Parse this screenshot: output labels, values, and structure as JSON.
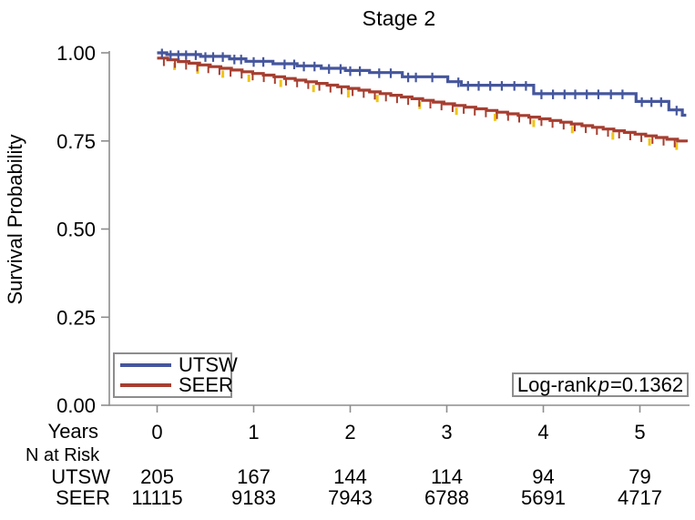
{
  "title": "Stage 2",
  "y_axis": {
    "label": "Survival Probability",
    "tick_labels": [
      "1.00",
      "0.75",
      "0.50",
      "0.25",
      "0.00"
    ],
    "tick_values": [
      1.0,
      0.75,
      0.5,
      0.25,
      0.0
    ]
  },
  "x_axis": {
    "label": "Years",
    "tick_labels": [
      "0",
      "1",
      "2",
      "3",
      "4",
      "5"
    ],
    "tick_values": [
      0,
      1,
      2,
      3,
      4,
      5
    ]
  },
  "legend": {
    "items": [
      {
        "label": "UTSW",
        "color": "#45569c"
      },
      {
        "label": "SEER",
        "color": "#a63e30"
      }
    ]
  },
  "annotation": {
    "prefix": "Log-rank",
    "p_symbol": "p",
    "value": "=0.1362"
  },
  "risk_table": {
    "section_label": "N at Risk",
    "rows": [
      {
        "label": "UTSW",
        "values": [
          "205",
          "167",
          "144",
          "114",
          "94",
          "79"
        ]
      },
      {
        "label": "SEER",
        "values": [
          "11115",
          "9183",
          "7943",
          "6788",
          "5691",
          "4717"
        ]
      }
    ]
  },
  "axis_color": "#8d8d8d",
  "chart_data": {
    "type": "line",
    "title": "Stage 2",
    "xlabel": "Years",
    "ylabel": "Survival Probability",
    "xlim": [
      0,
      5.6
    ],
    "ylim": [
      0,
      1
    ],
    "x_ticks": [
      0,
      1,
      2,
      3,
      4,
      5
    ],
    "y_ticks": [
      0,
      0.25,
      0.5,
      0.75,
      1.0
    ],
    "grid": false,
    "legend_position": "bottom-left-inside",
    "annotation_text": "Log-rank p=0.1362",
    "logrank_p": 0.1362,
    "series": [
      {
        "name": "UTSW",
        "color": "#45569c",
        "mode": "steps",
        "points": [
          [
            0,
            1.0
          ],
          [
            0.1,
            0.995
          ],
          [
            0.45,
            0.99
          ],
          [
            0.75,
            0.983
          ],
          [
            0.92,
            0.976
          ],
          [
            1.2,
            0.969
          ],
          [
            1.45,
            0.963
          ],
          [
            1.7,
            0.956
          ],
          [
            1.95,
            0.95
          ],
          [
            2.2,
            0.944
          ],
          [
            2.54,
            0.932
          ],
          [
            3.01,
            0.918
          ],
          [
            3.15,
            0.908
          ],
          [
            3.9,
            0.884
          ],
          [
            4.96,
            0.862
          ],
          [
            5.3,
            0.838
          ],
          [
            5.44,
            0.823
          ]
        ],
        "end_x": 5.48,
        "censor_times": [
          0.05,
          0.14,
          0.22,
          0.3,
          0.4,
          0.5,
          0.58,
          0.68,
          0.8,
          0.87,
          1.0,
          1.1,
          1.32,
          1.42,
          1.52,
          1.63,
          1.78,
          1.9,
          2.0,
          2.1,
          2.3,
          2.42,
          2.6,
          2.68,
          2.85,
          3.12,
          3.22,
          3.33,
          3.45,
          3.57,
          3.7,
          3.82,
          3.98,
          4.1,
          4.22,
          4.33,
          4.45,
          4.57,
          4.7,
          4.82,
          5.02,
          5.12,
          5.22,
          5.38
        ],
        "n_at_risk": [
          205,
          167,
          144,
          114,
          94,
          79
        ]
      },
      {
        "name": "SEER",
        "color": "#a63e30",
        "mode": "interp-steps",
        "step_width": 0.11,
        "points": [
          [
            0,
            0.985
          ],
          [
            1,
            0.941
          ],
          [
            2,
            0.898
          ],
          [
            3,
            0.854
          ],
          [
            4,
            0.811
          ],
          [
            5,
            0.767
          ],
          [
            5.48,
            0.746
          ]
        ],
        "end_x": 5.48,
        "censor_spec": {
          "start": 0.07,
          "step": 0.115,
          "end": 5.42
        },
        "censor_alt_color": "#f0c419",
        "censor_alt_times": [
          0.18,
          0.42,
          0.68,
          0.95,
          1.28,
          1.62,
          1.98,
          2.28,
          2.72,
          3.1,
          3.5,
          3.9,
          4.3,
          4.72,
          5.1,
          5.38
        ],
        "n_at_risk": [
          11115,
          9183,
          7943,
          6788,
          5691,
          4717
        ]
      }
    ]
  }
}
